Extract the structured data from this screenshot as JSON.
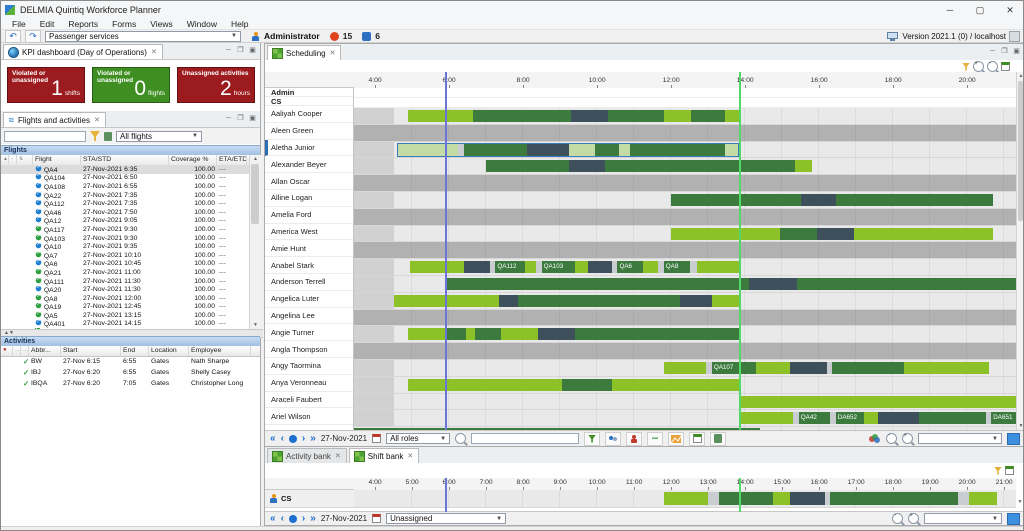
{
  "window": {
    "title": "DELMIA Quintiq Workforce Planner",
    "menus": [
      "File",
      "Edit",
      "Reports",
      "Forms",
      "Views",
      "Window",
      "Help"
    ],
    "controls": {
      "minimize": "─",
      "maximize": "▢",
      "close": "✕"
    },
    "toolbar": {
      "scenario": "Passenger services",
      "user": "Administrator",
      "alerts": "15",
      "tasks": "6",
      "version": "Version 2021.1 (0) / localhost"
    }
  },
  "kpi_panel": {
    "tab": "KPI dashboard (Day of Operations)",
    "tiles": [
      {
        "label": "Violated or unassigned",
        "value": "1",
        "unit": "shifts",
        "color": "#9b1b1e"
      },
      {
        "label": "Violated or unassigned",
        "value": "0",
        "unit": "flights",
        "color": "#3e8e22"
      },
      {
        "label": "Unassigned activities",
        "value": "2",
        "unit": "hours",
        "color": "#9b1b1e"
      }
    ]
  },
  "flights_panel": {
    "tab": "Flights and activities",
    "search_value": "",
    "filter_combo": "All flights",
    "section": "Flights",
    "columns": [
      "Flight",
      "STA/STD",
      "Coverage %",
      "ETA/ETD"
    ],
    "rows": [
      {
        "flight": "QA4",
        "sta": "27-Nov-2021 6:35",
        "cov": "100.00",
        "eta": "---",
        "dir": "blue",
        "selected": true
      },
      {
        "flight": "QA104",
        "sta": "27-Nov-2021 6:50",
        "cov": "100.00",
        "eta": "---",
        "dir": "blue"
      },
      {
        "flight": "QA108",
        "sta": "27-Nov-2021 6:55",
        "cov": "100.00",
        "eta": "---",
        "dir": "blue"
      },
      {
        "flight": "QA22",
        "sta": "27-Nov-2021 7:35",
        "cov": "100.00",
        "eta": "---",
        "dir": "blue"
      },
      {
        "flight": "QA112",
        "sta": "27-Nov-2021 7:35",
        "cov": "100.00",
        "eta": "---",
        "dir": "blue"
      },
      {
        "flight": "QA46",
        "sta": "27-Nov-2021 7:50",
        "cov": "100.00",
        "eta": "---",
        "dir": "blue"
      },
      {
        "flight": "QA12",
        "sta": "27-Nov-2021 9:05",
        "cov": "100.00",
        "eta": "---",
        "dir": "blue"
      },
      {
        "flight": "QA117",
        "sta": "27-Nov-2021 9:30",
        "cov": "100.00",
        "eta": "---",
        "dir": "green"
      },
      {
        "flight": "QA103",
        "sta": "27-Nov-2021 9:30",
        "cov": "100.00",
        "eta": "---",
        "dir": "green"
      },
      {
        "flight": "QA10",
        "sta": "27-Nov-2021 9:35",
        "cov": "100.00",
        "eta": "---",
        "dir": "blue"
      },
      {
        "flight": "QA7",
        "sta": "27-Nov-2021 10:10",
        "cov": "100.00",
        "eta": "---",
        "dir": "green"
      },
      {
        "flight": "QA6",
        "sta": "27-Nov-2021 10:45",
        "cov": "100.00",
        "eta": "---",
        "dir": "blue"
      },
      {
        "flight": "QA21",
        "sta": "27-Nov-2021 11:00",
        "cov": "100.00",
        "eta": "---",
        "dir": "green"
      },
      {
        "flight": "QA111",
        "sta": "27-Nov-2021 11:30",
        "cov": "100.00",
        "eta": "---",
        "dir": "green"
      },
      {
        "flight": "QA20",
        "sta": "27-Nov-2021 11:30",
        "cov": "100.00",
        "eta": "---",
        "dir": "blue"
      },
      {
        "flight": "QA8",
        "sta": "27-Nov-2021 12:00",
        "cov": "100.00",
        "eta": "---",
        "dir": "green"
      },
      {
        "flight": "QA19",
        "sta": "27-Nov-2021 12:45",
        "cov": "100.00",
        "eta": "---",
        "dir": "green"
      },
      {
        "flight": "QA5",
        "sta": "27-Nov-2021 13:15",
        "cov": "100.00",
        "eta": "---",
        "dir": "green"
      },
      {
        "flight": "QA401",
        "sta": "27-Nov-2021 14:15",
        "cov": "100.00",
        "eta": "---",
        "dir": "blue"
      }
    ]
  },
  "activities_panel": {
    "section": "Activities",
    "columns": [
      "Abbr...",
      "Start",
      "End",
      "Location",
      "Employee"
    ],
    "rows": [
      {
        "abbr": "BW",
        "start": "27-Nov 6:15",
        "end": "6:55",
        "location": "Gates",
        "employee": "Nath Sharpe"
      },
      {
        "abbr": "IBJ",
        "start": "27-Nov 6:20",
        "end": "6:55",
        "location": "Gates",
        "employee": "Shelly Casey"
      },
      {
        "abbr": "IBQA",
        "start": "27-Nov 6:20",
        "end": "7:05",
        "location": "Gates",
        "employee": "Christopher Long"
      }
    ]
  },
  "scheduling": {
    "tab": "Scheduling",
    "axis_labels": [
      "4:00",
      "6:00",
      "8:00",
      "10:00",
      "12:00",
      "14:00",
      "16:00",
      "18:00",
      "20:00"
    ],
    "groups": [
      "Admin",
      "CS"
    ],
    "time_window": {
      "start_hour": 3.43,
      "end_hour": 21.32
    },
    "marker_blue_hour": 5.9,
    "marker_green_hour": 13.83,
    "rows": [
      {
        "name": "Aaliyah Cooper",
        "avail": true,
        "segs": [
          [
            4.9,
            6.65,
            "lg"
          ],
          [
            6.65,
            9.3,
            "dg"
          ],
          [
            9.3,
            10.3,
            "ds"
          ],
          [
            10.3,
            11.8,
            "dg"
          ],
          [
            11.8,
            12.55,
            "lg"
          ],
          [
            12.55,
            13.45,
            "dg"
          ],
          [
            13.45,
            13.83,
            "lg"
          ]
        ]
      },
      {
        "name": "Aleen Green",
        "avail": false,
        "segs": []
      },
      {
        "name": "Aletha Junior",
        "avail": true,
        "selected": true,
        "segs": [
          [
            4.6,
            6.25,
            "pg"
          ],
          [
            6.25,
            6.4,
            "ch"
          ],
          [
            6.4,
            8.1,
            "dg"
          ],
          [
            8.1,
            9.25,
            "ds"
          ],
          [
            9.25,
            9.95,
            "pg"
          ],
          [
            9.95,
            10.6,
            "dg"
          ],
          [
            10.6,
            10.9,
            "pg"
          ],
          [
            10.9,
            13.45,
            "dg"
          ],
          [
            13.45,
            13.83,
            "pg"
          ]
        ]
      },
      {
        "name": "Alexander Beyer",
        "avail": true,
        "segs": [
          [
            7.0,
            9.25,
            "dg"
          ],
          [
            9.25,
            10.2,
            "ds"
          ],
          [
            10.2,
            15.35,
            "dg"
          ],
          [
            15.35,
            15.8,
            "lg"
          ]
        ]
      },
      {
        "name": "Allan Oscar",
        "avail": false,
        "segs": []
      },
      {
        "name": "Alline Logan",
        "avail": true,
        "segs": [
          [
            12.0,
            15.5,
            "dg"
          ],
          [
            15.5,
            16.45,
            "ds"
          ],
          [
            16.45,
            20.7,
            "dg"
          ]
        ]
      },
      {
        "name": "Amelia Ford",
        "avail": false,
        "segs": []
      },
      {
        "name": "America West",
        "avail": true,
        "segs": [
          [
            12.0,
            14.95,
            "lg"
          ],
          [
            14.95,
            15.95,
            "dg"
          ],
          [
            15.95,
            16.95,
            "ds"
          ],
          [
            16.95,
            20.7,
            "lg"
          ]
        ]
      },
      {
        "name": "Amie Hunt",
        "avail": false,
        "segs": []
      },
      {
        "name": "Anabel Stark",
        "avail": true,
        "segs": [
          [
            4.95,
            6.4,
            "lg"
          ],
          [
            6.4,
            7.1,
            "ds"
          ],
          [
            7.1,
            7.25,
            "ch"
          ],
          [
            7.25,
            8.05,
            "dg",
            "QA112"
          ],
          [
            8.05,
            8.35,
            "lg"
          ],
          [
            8.35,
            8.5,
            "ch"
          ],
          [
            8.5,
            9.4,
            "dg",
            "QA103"
          ],
          [
            9.4,
            9.75,
            "lg"
          ],
          [
            9.75,
            10.4,
            "ds"
          ],
          [
            10.4,
            10.55,
            "ch"
          ],
          [
            10.55,
            11.25,
            "dg",
            "QA6"
          ],
          [
            11.25,
            11.65,
            "lg"
          ],
          [
            11.65,
            11.8,
            "ch"
          ],
          [
            11.8,
            12.5,
            "dg",
            "QA8"
          ],
          [
            12.5,
            12.7,
            "ch"
          ],
          [
            12.7,
            13.83,
            "lg"
          ]
        ]
      },
      {
        "name": "Anderson Terrell",
        "avail": true,
        "segs": [
          [
            5.9,
            14.1,
            "dg"
          ],
          [
            14.1,
            15.4,
            "ds"
          ],
          [
            15.4,
            21.32,
            "dg"
          ]
        ]
      },
      {
        "name": "Angelica Luter",
        "avail": true,
        "segs": [
          [
            4.5,
            7.35,
            "lg"
          ],
          [
            7.35,
            7.85,
            "ds"
          ],
          [
            7.85,
            12.25,
            "dg"
          ],
          [
            12.25,
            13.1,
            "ds"
          ],
          [
            13.1,
            13.83,
            "lg"
          ]
        ]
      },
      {
        "name": "Angelina Lee",
        "avail": false,
        "segs": []
      },
      {
        "name": "Angie Turner",
        "avail": true,
        "segs": [
          [
            4.9,
            5.9,
            "lg"
          ],
          [
            5.9,
            6.45,
            "dg"
          ],
          [
            6.45,
            6.7,
            "lg"
          ],
          [
            6.7,
            7.4,
            "dg"
          ],
          [
            7.4,
            8.4,
            "lg"
          ],
          [
            8.4,
            9.4,
            "ds"
          ],
          [
            9.4,
            13.83,
            "dg"
          ]
        ]
      },
      {
        "name": "Angla Thompson",
        "avail": false,
        "segs": []
      },
      {
        "name": "Angy Taormina",
        "avail": true,
        "segs": [
          [
            11.8,
            12.95,
            "lg"
          ],
          [
            12.95,
            13.1,
            "ch"
          ],
          [
            13.1,
            14.3,
            "dg",
            "QA107"
          ],
          [
            14.3,
            15.2,
            "lg"
          ],
          [
            15.2,
            16.2,
            "ds"
          ],
          [
            16.2,
            16.35,
            "ch"
          ],
          [
            16.35,
            18.3,
            "dg"
          ],
          [
            18.3,
            20.6,
            "lg"
          ]
        ]
      },
      {
        "name": "Anya Veronneau",
        "avail": true,
        "segs": [
          [
            4.9,
            9.05,
            "lg"
          ],
          [
            9.05,
            10.4,
            "dg"
          ],
          [
            10.4,
            13.83,
            "lg"
          ]
        ]
      },
      {
        "name": "Araceli Faubert",
        "avail": true,
        "segs": [
          [
            13.83,
            21.32,
            "lg"
          ]
        ]
      },
      {
        "name": "Ariel Wilson",
        "avail": true,
        "segs": [
          [
            13.83,
            15.3,
            "lg"
          ],
          [
            15.3,
            15.45,
            "ch"
          ],
          [
            15.45,
            16.3,
            "dg",
            "QA42"
          ],
          [
            16.3,
            16.45,
            "ch"
          ],
          [
            16.45,
            17.2,
            "dg",
            "DA652"
          ],
          [
            17.2,
            17.6,
            "lg"
          ],
          [
            17.6,
            18.7,
            "ds"
          ],
          [
            18.7,
            20.5,
            "dg"
          ],
          [
            20.5,
            20.65,
            "ch"
          ],
          [
            20.65,
            21.32,
            "dg",
            "DA651"
          ]
        ]
      },
      {
        "name": "",
        "avail": true,
        "partial": true,
        "segs": [
          [
            3.43,
            14.4,
            "dg"
          ]
        ]
      }
    ],
    "footer": {
      "date": "27-Nov-2021",
      "roles": "All roles",
      "search_value": ""
    }
  },
  "shift_bank": {
    "tabs": [
      {
        "label": "Activity bank",
        "active": false
      },
      {
        "label": "Shift bank",
        "active": true
      }
    ],
    "axis_labels": [
      "4:00",
      "5:00",
      "6:00",
      "7:00",
      "8:00",
      "9:00",
      "10:00",
      "11:00",
      "12:00",
      "13:00",
      "14:00",
      "15:00",
      "16:00",
      "17:00",
      "18:00",
      "19:00",
      "20:00",
      "21:00"
    ],
    "cs_label": "CS",
    "segs": [
      [
        11.8,
        13.0,
        "lg"
      ],
      [
        13.0,
        13.3,
        "ch"
      ],
      [
        13.3,
        14.75,
        "dg"
      ],
      [
        14.75,
        15.2,
        "lg"
      ],
      [
        15.2,
        16.15,
        "ds"
      ],
      [
        16.15,
        16.3,
        "ch"
      ],
      [
        16.3,
        19.75,
        "dg"
      ],
      [
        19.75,
        20.05,
        "ch"
      ],
      [
        20.05,
        20.8,
        "lg"
      ]
    ],
    "footer": {
      "date": "27-Nov-2021",
      "filter": "Unassigned"
    }
  },
  "colors": {
    "lg": "#8cc228",
    "dg": "#3c7a3e",
    "ds": "#3e505c",
    "pg": "#c3dba4",
    "ch": "#c9cdd1",
    "blue_line": "#6a74db",
    "green_line": "#52d96a"
  }
}
